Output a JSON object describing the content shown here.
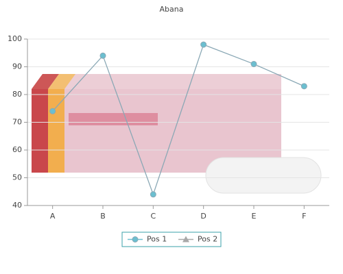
{
  "chart_data": {
    "type": "line",
    "title": "Abana",
    "categories": [
      "A",
      "B",
      "C",
      "D",
      "E",
      "F"
    ],
    "series": [
      {
        "name": "Pos 1",
        "color": "#6bbfd0",
        "values": [
          74,
          94,
          44,
          98,
          91,
          83
        ]
      },
      {
        "name": "Pos 2",
        "color": "#a8a8a8",
        "values": [
          null,
          null,
          null,
          null,
          null,
          null
        ]
      }
    ],
    "ylim": [
      40,
      100
    ],
    "yticks": [
      40,
      50,
      60,
      70,
      80,
      90,
      100
    ],
    "grid": true
  }
}
